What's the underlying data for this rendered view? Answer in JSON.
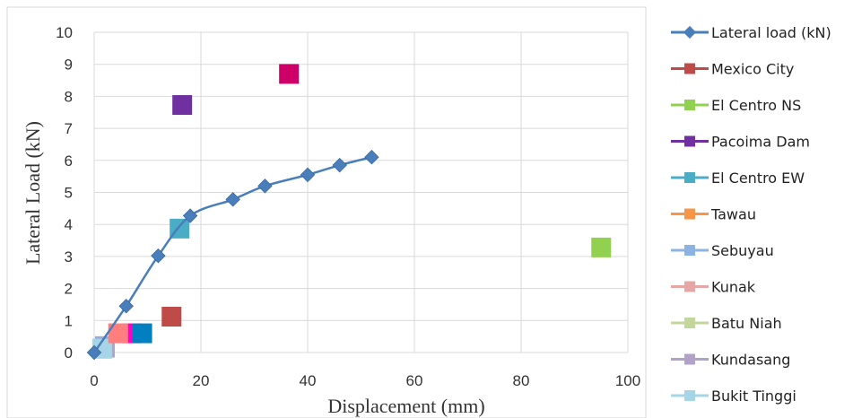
{
  "chart_data": {
    "type": "scatter",
    "xlabel": "Displacement (mm)",
    "ylabel": "Lateral Load (kN)",
    "xlim": [
      0,
      100
    ],
    "ylim": [
      0,
      10
    ],
    "xticks": [
      0,
      20,
      40,
      60,
      80,
      100
    ],
    "yticks": [
      0,
      1,
      2,
      3,
      4,
      5,
      6,
      7,
      8,
      9,
      10
    ],
    "grid": true,
    "legend_position": "right",
    "series": [
      {
        "name": "Lateral load (kN)",
        "color": "#4a7ebb",
        "marker": "diamond",
        "line": true,
        "x": [
          0,
          6,
          12,
          18,
          26,
          32,
          40,
          46,
          52
        ],
        "y": [
          0,
          1.45,
          3.02,
          4.27,
          4.78,
          5.2,
          5.55,
          5.85,
          6.1
        ]
      },
      {
        "name": "Mexico City",
        "color": "#be4b48",
        "marker": "square",
        "x": [
          14.5
        ],
        "y": [
          1.12
        ]
      },
      {
        "name": "El Centro NS",
        "color": "#92d050",
        "marker": "square",
        "x": [
          95
        ],
        "y": [
          3.28
        ]
      },
      {
        "name": "Pacoima Dam",
        "color": "#7030a0",
        "marker": "square",
        "x": [
          16.5
        ],
        "y": [
          7.73
        ]
      },
      {
        "name": "El Centro EW",
        "color": "#4bacc6",
        "marker": "square",
        "x": [
          16
        ],
        "y": [
          3.87
        ]
      },
      {
        "name": "Tawau",
        "color": "#f79646",
        "marker": "square",
        "x": [
          7
        ],
        "y": [
          0.6
        ]
      },
      {
        "name": "Sebuyau",
        "color": "#8db3e2",
        "marker": "square",
        "x": [
          2
        ],
        "y": [
          0.2
        ]
      },
      {
        "name": "Kunak",
        "color": "#e6a6a6",
        "marker": "square",
        "x": [
          4.5
        ],
        "y": [
          0.6
        ]
      },
      {
        "name": "Batu Niah",
        "color": "#c3d69b",
        "marker": "square",
        "x": [
          1.5
        ],
        "y": [
          0.12
        ]
      },
      {
        "name": "Kundasang",
        "color": "#b3a2c7",
        "marker": "square",
        "x": [
          2
        ],
        "y": [
          0.15
        ]
      },
      {
        "name": "Bukit Tinggi",
        "color": "#a5d5e6",
        "marker": "square",
        "x": [
          1.5
        ],
        "y": [
          0.12
        ]
      }
    ],
    "extra_points": [
      {
        "color": "#cc0066",
        "x": [
          36.5
        ],
        "y": [
          8.7
        ]
      },
      {
        "color": "#ff00cc",
        "x": [
          7
        ],
        "y": [
          0.6
        ]
      },
      {
        "color": "#0080c0",
        "x": [
          9
        ],
        "y": [
          0.6
        ]
      },
      {
        "color": "#ff7f7f",
        "x": [
          4.5
        ],
        "y": [
          0.6
        ]
      }
    ]
  }
}
